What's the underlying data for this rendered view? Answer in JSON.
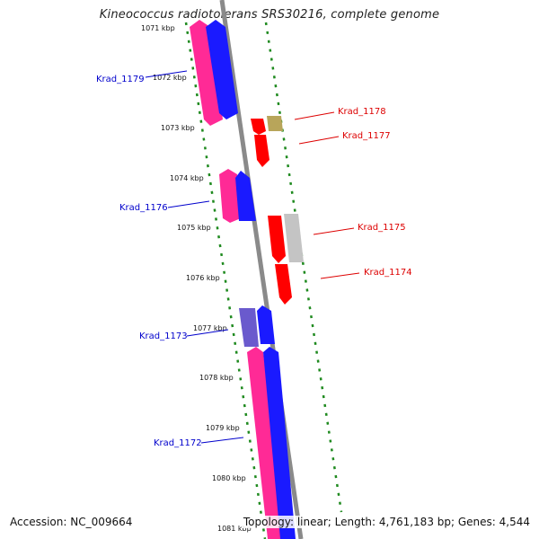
{
  "title": "Kineococcus radiotolerans SRS30216, complete genome",
  "footer": {
    "accession": "Accession: NC_009664",
    "summary": "Topology: linear; Length: 4,761,183 bp; Genes: 4,544"
  },
  "colors": {
    "axis": "#8a8a8a",
    "tick": "#1f8a1f",
    "forward_label": "#0000cc",
    "reverse_label": "#dd0000",
    "pink": "#ff2a96",
    "blue": "#1a1aff",
    "red": "#ff0000",
    "olive": "#b8a55a",
    "gray": "#c4c4c4",
    "slate": "#6a5acd"
  },
  "kbp_labels": [
    "1071 kbp",
    "1072 kbp",
    "1073 kbp",
    "1074 kbp",
    "1075 kbp",
    "1076 kbp",
    "1077 kbp",
    "1078 kbp",
    "1079 kbp",
    "1080 kbp",
    "1081 kbp"
  ],
  "gene_labels": [
    {
      "text": "Krad_1179",
      "side": "left"
    },
    {
      "text": "Krad_1178",
      "side": "right"
    },
    {
      "text": "Krad_1177",
      "side": "right"
    },
    {
      "text": "Krad_1176",
      "side": "left"
    },
    {
      "text": "Krad_1175",
      "side": "right"
    },
    {
      "text": "Krad_1174",
      "side": "right"
    },
    {
      "text": "Krad_1173",
      "side": "left"
    },
    {
      "text": "Krad_1172",
      "side": "left"
    }
  ]
}
